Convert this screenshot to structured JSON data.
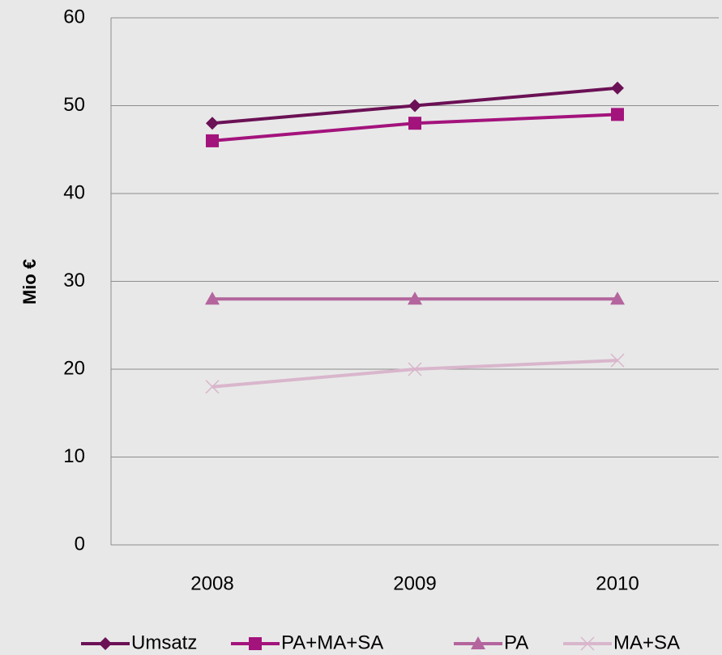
{
  "chart_data": {
    "type": "line",
    "y_label": "Mio €",
    "categories": [
      "2008",
      "2009",
      "2010"
    ],
    "series": [
      {
        "name": "Umsatz",
        "color": "#6b1155",
        "marker": "diamond",
        "values": [
          48,
          50,
          52
        ]
      },
      {
        "name": "PA+MA+SA",
        "color": "#a3137c",
        "marker": "square",
        "values": [
          46,
          48,
          49
        ]
      },
      {
        "name": "PA",
        "color": "#b4659d",
        "marker": "triangle",
        "values": [
          28,
          28,
          28
        ]
      },
      {
        "name": "MA+SA",
        "color": "#d9b6cc",
        "marker": "x",
        "values": [
          18,
          20,
          21
        ]
      }
    ],
    "ylim": [
      0,
      60
    ],
    "yticks": [
      0,
      10,
      20,
      30,
      40,
      50,
      60
    ],
    "grid": true,
    "legend": "bottom"
  }
}
